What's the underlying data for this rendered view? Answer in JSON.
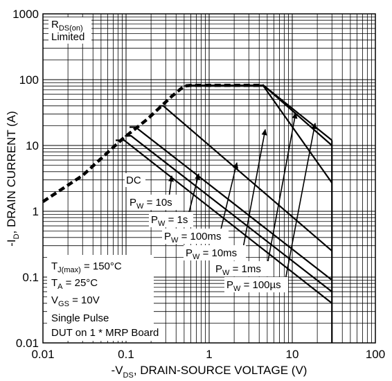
{
  "chart_data": {
    "type": "line",
    "scale": {
      "x": "log",
      "y": "log"
    },
    "xlim": [
      0.01,
      100
    ],
    "ylim": [
      0.01,
      1000
    ],
    "grid": true,
    "xlabel": {
      "pre": "-V",
      "sub": "DS",
      "post": ", DRAIN-SOURCE VOLTAGE (V)"
    },
    "ylabel": {
      "pre": "-I",
      "sub": "D",
      "post": ", DRAIN CURRENT (A)"
    },
    "x_ticks": [
      {
        "value": 0.01,
        "label": "0.01"
      },
      {
        "value": 0.1,
        "label": "0.1"
      },
      {
        "value": 1,
        "label": "1"
      },
      {
        "value": 10,
        "label": "10"
      },
      {
        "value": 100,
        "label": "100"
      }
    ],
    "y_ticks": [
      {
        "value": 0.01,
        "label": "0.01"
      },
      {
        "value": 0.1,
        "label": "0.1"
      },
      {
        "value": 1,
        "label": "1"
      },
      {
        "value": 10,
        "label": "10"
      },
      {
        "value": 100,
        "label": "100"
      },
      {
        "value": 1000,
        "label": "1000"
      }
    ],
    "limit_curve": {
      "x": [
        0.01,
        0.03,
        0.09,
        0.18,
        0.35,
        0.5,
        0.6,
        1.0,
        2.0,
        4.5
      ],
      "y": [
        1.4,
        3.5,
        12.5,
        25,
        55,
        80,
        82,
        82,
        82,
        82
      ]
    },
    "series": [
      {
        "name": "DC",
        "x": [
          0.075,
          0.095,
          30
        ],
        "y": [
          12,
          12,
          0.04
        ]
      },
      {
        "name": "10s",
        "x": [
          0.097,
          0.115,
          30
        ],
        "y": [
          14,
          14,
          0.06
        ]
      },
      {
        "name": "1s",
        "x": [
          0.11,
          0.13,
          30
        ],
        "y": [
          19,
          19,
          0.09
        ]
      },
      {
        "name": "100ms",
        "x": [
          0.25,
          0.28,
          30
        ],
        "y": [
          40,
          40,
          0.25
        ]
      },
      {
        "name": "10ms",
        "x": [
          0.5,
          0.6,
          4.5,
          30
        ],
        "y": [
          80,
          80,
          80,
          2.7
        ]
      },
      {
        "name": "1ms",
        "x": [
          0.6,
          4.5,
          30
        ],
        "y": [
          82,
          82,
          10
        ]
      },
      {
        "name": "100µs",
        "x": [
          0.6,
          4.5,
          30
        ],
        "y": [
          82,
          82,
          12
        ]
      }
    ],
    "drop_line": {
      "x": [
        30,
        30
      ],
      "y": [
        12,
        0.01
      ]
    },
    "annotations": {
      "rds": {
        "line1_pre": "R",
        "line1_sub": "DS(on)",
        "line2": "Limited"
      },
      "dc_label": "DC",
      "pw_labels": [
        {
          "pre": "P",
          "sub": "W",
          "post": " = 10s"
        },
        {
          "pre": "P",
          "sub": "W",
          "post": " = 1s"
        },
        {
          "pre": "P",
          "sub": "W",
          "post": " = 100ms"
        },
        {
          "pre": "P",
          "sub": "W",
          "post": " = 10ms"
        },
        {
          "pre": "P",
          "sub": "W",
          "post": " = 1ms"
        },
        {
          "pre": "P",
          "sub": "W",
          "post": " = 100µs"
        }
      ],
      "conditions": [
        {
          "pre": "T",
          "sub": "J(max)",
          "post": " = 150°C"
        },
        {
          "pre": "T",
          "sub": "A",
          "post": " = 25°C"
        },
        {
          "pre": "V",
          "sub": "GS",
          "post": " = 10V"
        },
        {
          "pre": "",
          "sub": "",
          "post": "Single Pulse"
        },
        {
          "pre": "",
          "sub": "",
          "post": "DUT on 1 * MRP Board"
        }
      ]
    }
  }
}
